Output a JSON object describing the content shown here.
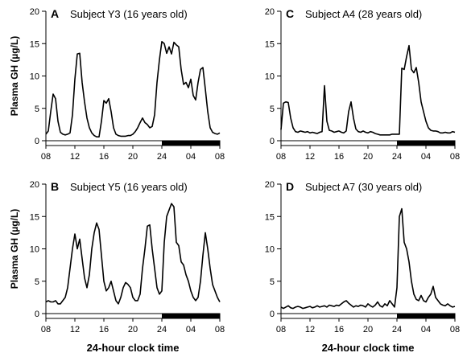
{
  "chart_data": {
    "type": "line",
    "ylabel": "Plasma GH (µg/L)",
    "xlabel": "24-hour clock time",
    "ylim": [
      0,
      20
    ],
    "yticks": [
      "0",
      "5",
      "10",
      "15",
      "20"
    ],
    "xticks": [
      "08",
      "12",
      "16",
      "20",
      "24",
      "04",
      "08"
    ],
    "night_bar": {
      "from_hour": 24,
      "to_hour": 32,
      "color": "#000000"
    },
    "panels": [
      {
        "letter": "A",
        "title": "Subject Y3 (16 years old)",
        "x": [
          8,
          8.33,
          8.67,
          9,
          9.33,
          9.67,
          10,
          10.33,
          10.67,
          11,
          11.33,
          11.67,
          12,
          12.33,
          12.67,
          13,
          13.33,
          13.67,
          14,
          14.33,
          14.67,
          15,
          15.33,
          15.67,
          16,
          16.33,
          16.67,
          17,
          17.33,
          17.67,
          18,
          18.33,
          18.67,
          19,
          19.33,
          19.67,
          20,
          20.33,
          20.67,
          21,
          21.33,
          21.67,
          22,
          22.33,
          22.67,
          23,
          23.33,
          23.67,
          24,
          24.33,
          24.67,
          25,
          25.33,
          25.67,
          26,
          26.33,
          26.67,
          27,
          27.33,
          27.67,
          28,
          28.33,
          28.67,
          29,
          29.33,
          29.67,
          30,
          30.33,
          30.67,
          31,
          31.33,
          31.67,
          32
        ],
        "y": [
          1.0,
          1.5,
          4.5,
          7.2,
          6.5,
          3.0,
          1.3,
          1.0,
          0.9,
          1.0,
          1.2,
          4.0,
          9.5,
          13.4,
          13.5,
          9.0,
          6.0,
          3.5,
          2.0,
          1.2,
          0.8,
          0.6,
          0.6,
          3.0,
          6.2,
          5.8,
          6.5,
          4.5,
          2.0,
          1.0,
          0.8,
          0.7,
          0.7,
          0.7,
          0.8,
          0.8,
          1.0,
          1.4,
          2.0,
          2.8,
          3.5,
          2.8,
          2.5,
          2.0,
          2.2,
          4.0,
          9.0,
          12.5,
          15.3,
          15.0,
          13.5,
          14.5,
          13.4,
          15.2,
          14.8,
          14.5,
          11.0,
          8.7,
          9.0,
          8.2,
          9.5,
          7.0,
          6.3,
          9.0,
          11.0,
          11.3,
          8.0,
          4.5,
          2.0,
          1.3,
          1.1,
          1.0,
          1.2
        ]
      },
      {
        "letter": "B",
        "title": "Subject Y5 (16 years old)",
        "x": [
          8,
          8.33,
          8.67,
          9,
          9.33,
          9.67,
          10,
          10.33,
          10.67,
          11,
          11.33,
          11.67,
          12,
          12.33,
          12.67,
          13,
          13.33,
          13.67,
          14,
          14.33,
          14.67,
          15,
          15.33,
          15.67,
          16,
          16.33,
          16.67,
          17,
          17.33,
          17.67,
          18,
          18.33,
          18.67,
          19,
          19.33,
          19.67,
          20,
          20.33,
          20.67,
          21,
          21.33,
          21.67,
          22,
          22.33,
          22.67,
          23,
          23.33,
          23.67,
          24,
          24.33,
          24.67,
          25,
          25.33,
          25.67,
          26,
          26.33,
          26.67,
          27,
          27.33,
          27.67,
          28,
          28.33,
          28.67,
          29,
          29.33,
          29.67,
          30,
          30.33,
          30.67,
          31,
          31.33,
          31.67,
          32
        ],
        "y": [
          1.8,
          2.0,
          1.8,
          1.8,
          2.0,
          1.5,
          1.5,
          2.0,
          2.5,
          4.0,
          7.0,
          10.0,
          12.3,
          10.0,
          11.5,
          8.5,
          5.5,
          4.0,
          6.0,
          10.0,
          12.5,
          14.0,
          13.0,
          9.0,
          5.0,
          3.5,
          4.0,
          5.0,
          3.5,
          2.0,
          1.5,
          2.5,
          4.0,
          4.8,
          4.5,
          4.0,
          2.5,
          2.0,
          2.0,
          3.0,
          7.0,
          10.0,
          13.5,
          13.7,
          10.0,
          7.0,
          4.0,
          3.0,
          3.5,
          11.0,
          15.0,
          16.0,
          17.0,
          16.5,
          11.0,
          10.5,
          8.0,
          7.5,
          6.0,
          5.0,
          3.5,
          2.5,
          2.0,
          2.5,
          5.0,
          9.0,
          12.5,
          10.0,
          7.0,
          4.5,
          3.5,
          2.5,
          1.8
        ]
      },
      {
        "letter": "C",
        "title": "Subject A4 (28 years old)",
        "x": [
          8,
          8.33,
          8.67,
          9,
          9.33,
          9.67,
          10,
          10.33,
          10.67,
          11,
          11.33,
          11.67,
          12,
          12.33,
          12.67,
          13,
          13.33,
          13.67,
          14,
          14.33,
          14.67,
          15,
          15.33,
          15.67,
          16,
          16.33,
          16.67,
          17,
          17.33,
          17.67,
          18,
          18.33,
          18.67,
          19,
          19.33,
          19.67,
          20,
          20.33,
          20.67,
          21,
          21.33,
          21.67,
          22,
          22.33,
          22.67,
          23,
          23.33,
          23.67,
          24,
          24.33,
          24.67,
          25,
          25.33,
          25.67,
          26,
          26.33,
          26.67,
          27,
          27.33,
          27.67,
          28,
          28.33,
          28.67,
          29,
          29.33,
          29.67,
          30,
          30.33,
          30.67,
          31,
          31.33,
          31.67,
          32
        ],
        "y": [
          1.7,
          5.8,
          6.0,
          5.9,
          3.5,
          2.0,
          1.4,
          1.3,
          1.5,
          1.4,
          1.3,
          1.4,
          1.2,
          1.3,
          1.2,
          1.1,
          1.3,
          1.4,
          8.5,
          3.0,
          1.6,
          1.5,
          1.3,
          1.4,
          1.5,
          1.3,
          1.2,
          1.5,
          4.5,
          6.0,
          3.5,
          1.8,
          1.4,
          1.3,
          1.5,
          1.3,
          1.2,
          1.4,
          1.3,
          1.1,
          1.0,
          0.9,
          0.9,
          0.9,
          0.9,
          0.9,
          1.0,
          1.0,
          1.0,
          1.0,
          11.2,
          11.0,
          13.0,
          14.7,
          11.0,
          10.5,
          11.3,
          9.0,
          6.0,
          4.5,
          3.0,
          2.0,
          1.6,
          1.5,
          1.5,
          1.4,
          1.2,
          1.2,
          1.3,
          1.2,
          1.2,
          1.4,
          1.3
        ]
      },
      {
        "letter": "D",
        "title": "Subject A7 (30 years old)",
        "x": [
          8,
          8.33,
          8.67,
          9,
          9.33,
          9.67,
          10,
          10.33,
          10.67,
          11,
          11.33,
          11.67,
          12,
          12.33,
          12.67,
          13,
          13.33,
          13.67,
          14,
          14.33,
          14.67,
          15,
          15.33,
          15.67,
          16,
          16.33,
          16.67,
          17,
          17.33,
          17.67,
          18,
          18.33,
          18.67,
          19,
          19.33,
          19.67,
          20,
          20.33,
          20.67,
          21,
          21.33,
          21.67,
          22,
          22.33,
          22.67,
          23,
          23.33,
          23.67,
          24,
          24.33,
          24.67,
          25,
          25.33,
          25.67,
          26,
          26.33,
          26.67,
          27,
          27.33,
          27.67,
          28,
          28.33,
          28.67,
          29,
          29.33,
          29.67,
          30,
          30.33,
          30.67,
          31,
          31.33,
          31.67,
          32
        ],
        "y": [
          1.0,
          0.8,
          1.0,
          1.2,
          0.9,
          0.8,
          1.0,
          1.1,
          1.0,
          0.8,
          0.9,
          1.0,
          1.1,
          0.9,
          1.0,
          1.2,
          1.0,
          1.1,
          1.2,
          1.0,
          1.3,
          1.2,
          1.1,
          1.3,
          1.2,
          1.5,
          1.8,
          2.0,
          1.6,
          1.3,
          1.0,
          1.2,
          1.1,
          1.3,
          1.2,
          1.0,
          1.5,
          1.2,
          1.0,
          1.3,
          1.8,
          1.2,
          1.0,
          1.5,
          1.2,
          2.0,
          1.5,
          1.0,
          4.0,
          15.0,
          16.2,
          11.0,
          10.0,
          8.0,
          5.0,
          3.0,
          2.2,
          2.0,
          2.8,
          2.0,
          1.8,
          2.5,
          3.0,
          4.2,
          2.5,
          2.0,
          1.5,
          1.3,
          1.2,
          1.5,
          1.2,
          1.0,
          1.1
        ]
      }
    ]
  }
}
